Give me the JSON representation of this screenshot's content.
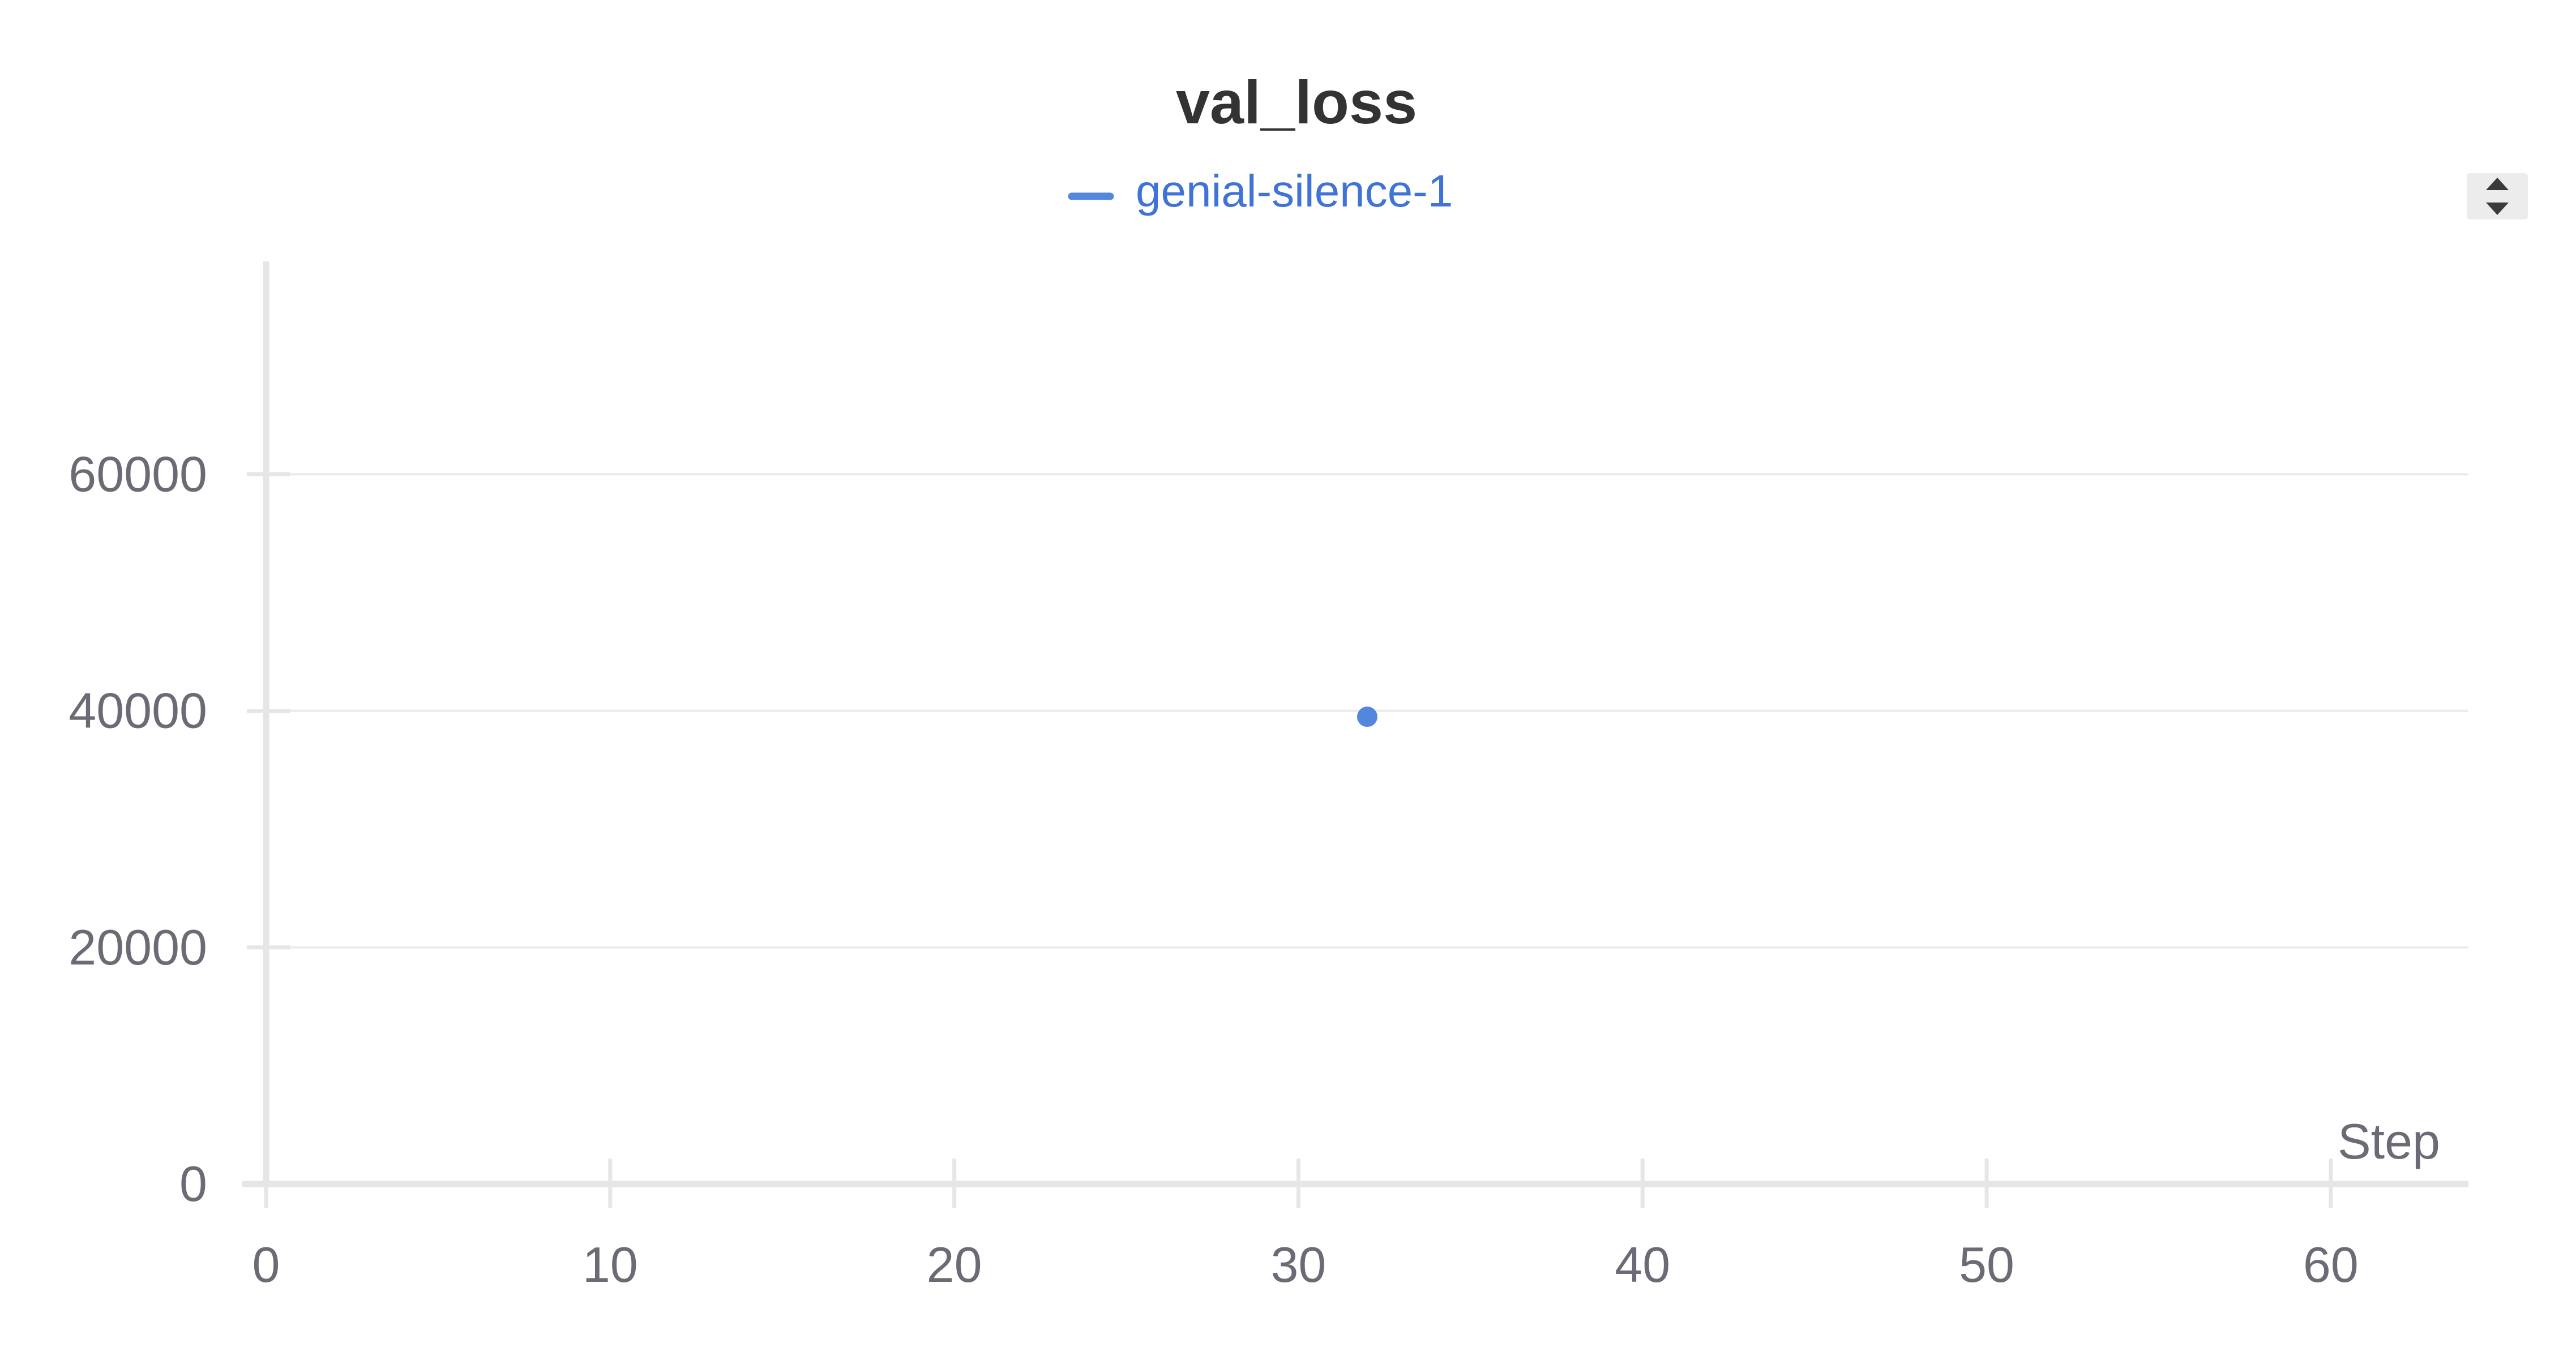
{
  "chart_data": {
    "type": "scatter",
    "title": "val_loss",
    "xlabel": "Step",
    "ylabel": "",
    "xlim": [
      0,
      64
    ],
    "ylim": [
      0,
      78000
    ],
    "x_ticks": [
      0,
      10,
      20,
      30,
      40,
      50,
      60
    ],
    "y_ticks": [
      0,
      20000,
      40000,
      60000
    ],
    "grid": true,
    "legend_position": "top-center",
    "series": [
      {
        "name": "genial-silence-1",
        "color": "#5387dd",
        "points": [
          {
            "x": 32,
            "y": 39500
          }
        ]
      }
    ]
  },
  "colors": {
    "axis": "#e6e6e6",
    "grid": "#ebebeb",
    "tick_text": "#6b6b76",
    "title_text": "#333333",
    "legend_text": "#3f73d6"
  },
  "controls": {
    "sort_icon": "sort-updown-icon"
  }
}
